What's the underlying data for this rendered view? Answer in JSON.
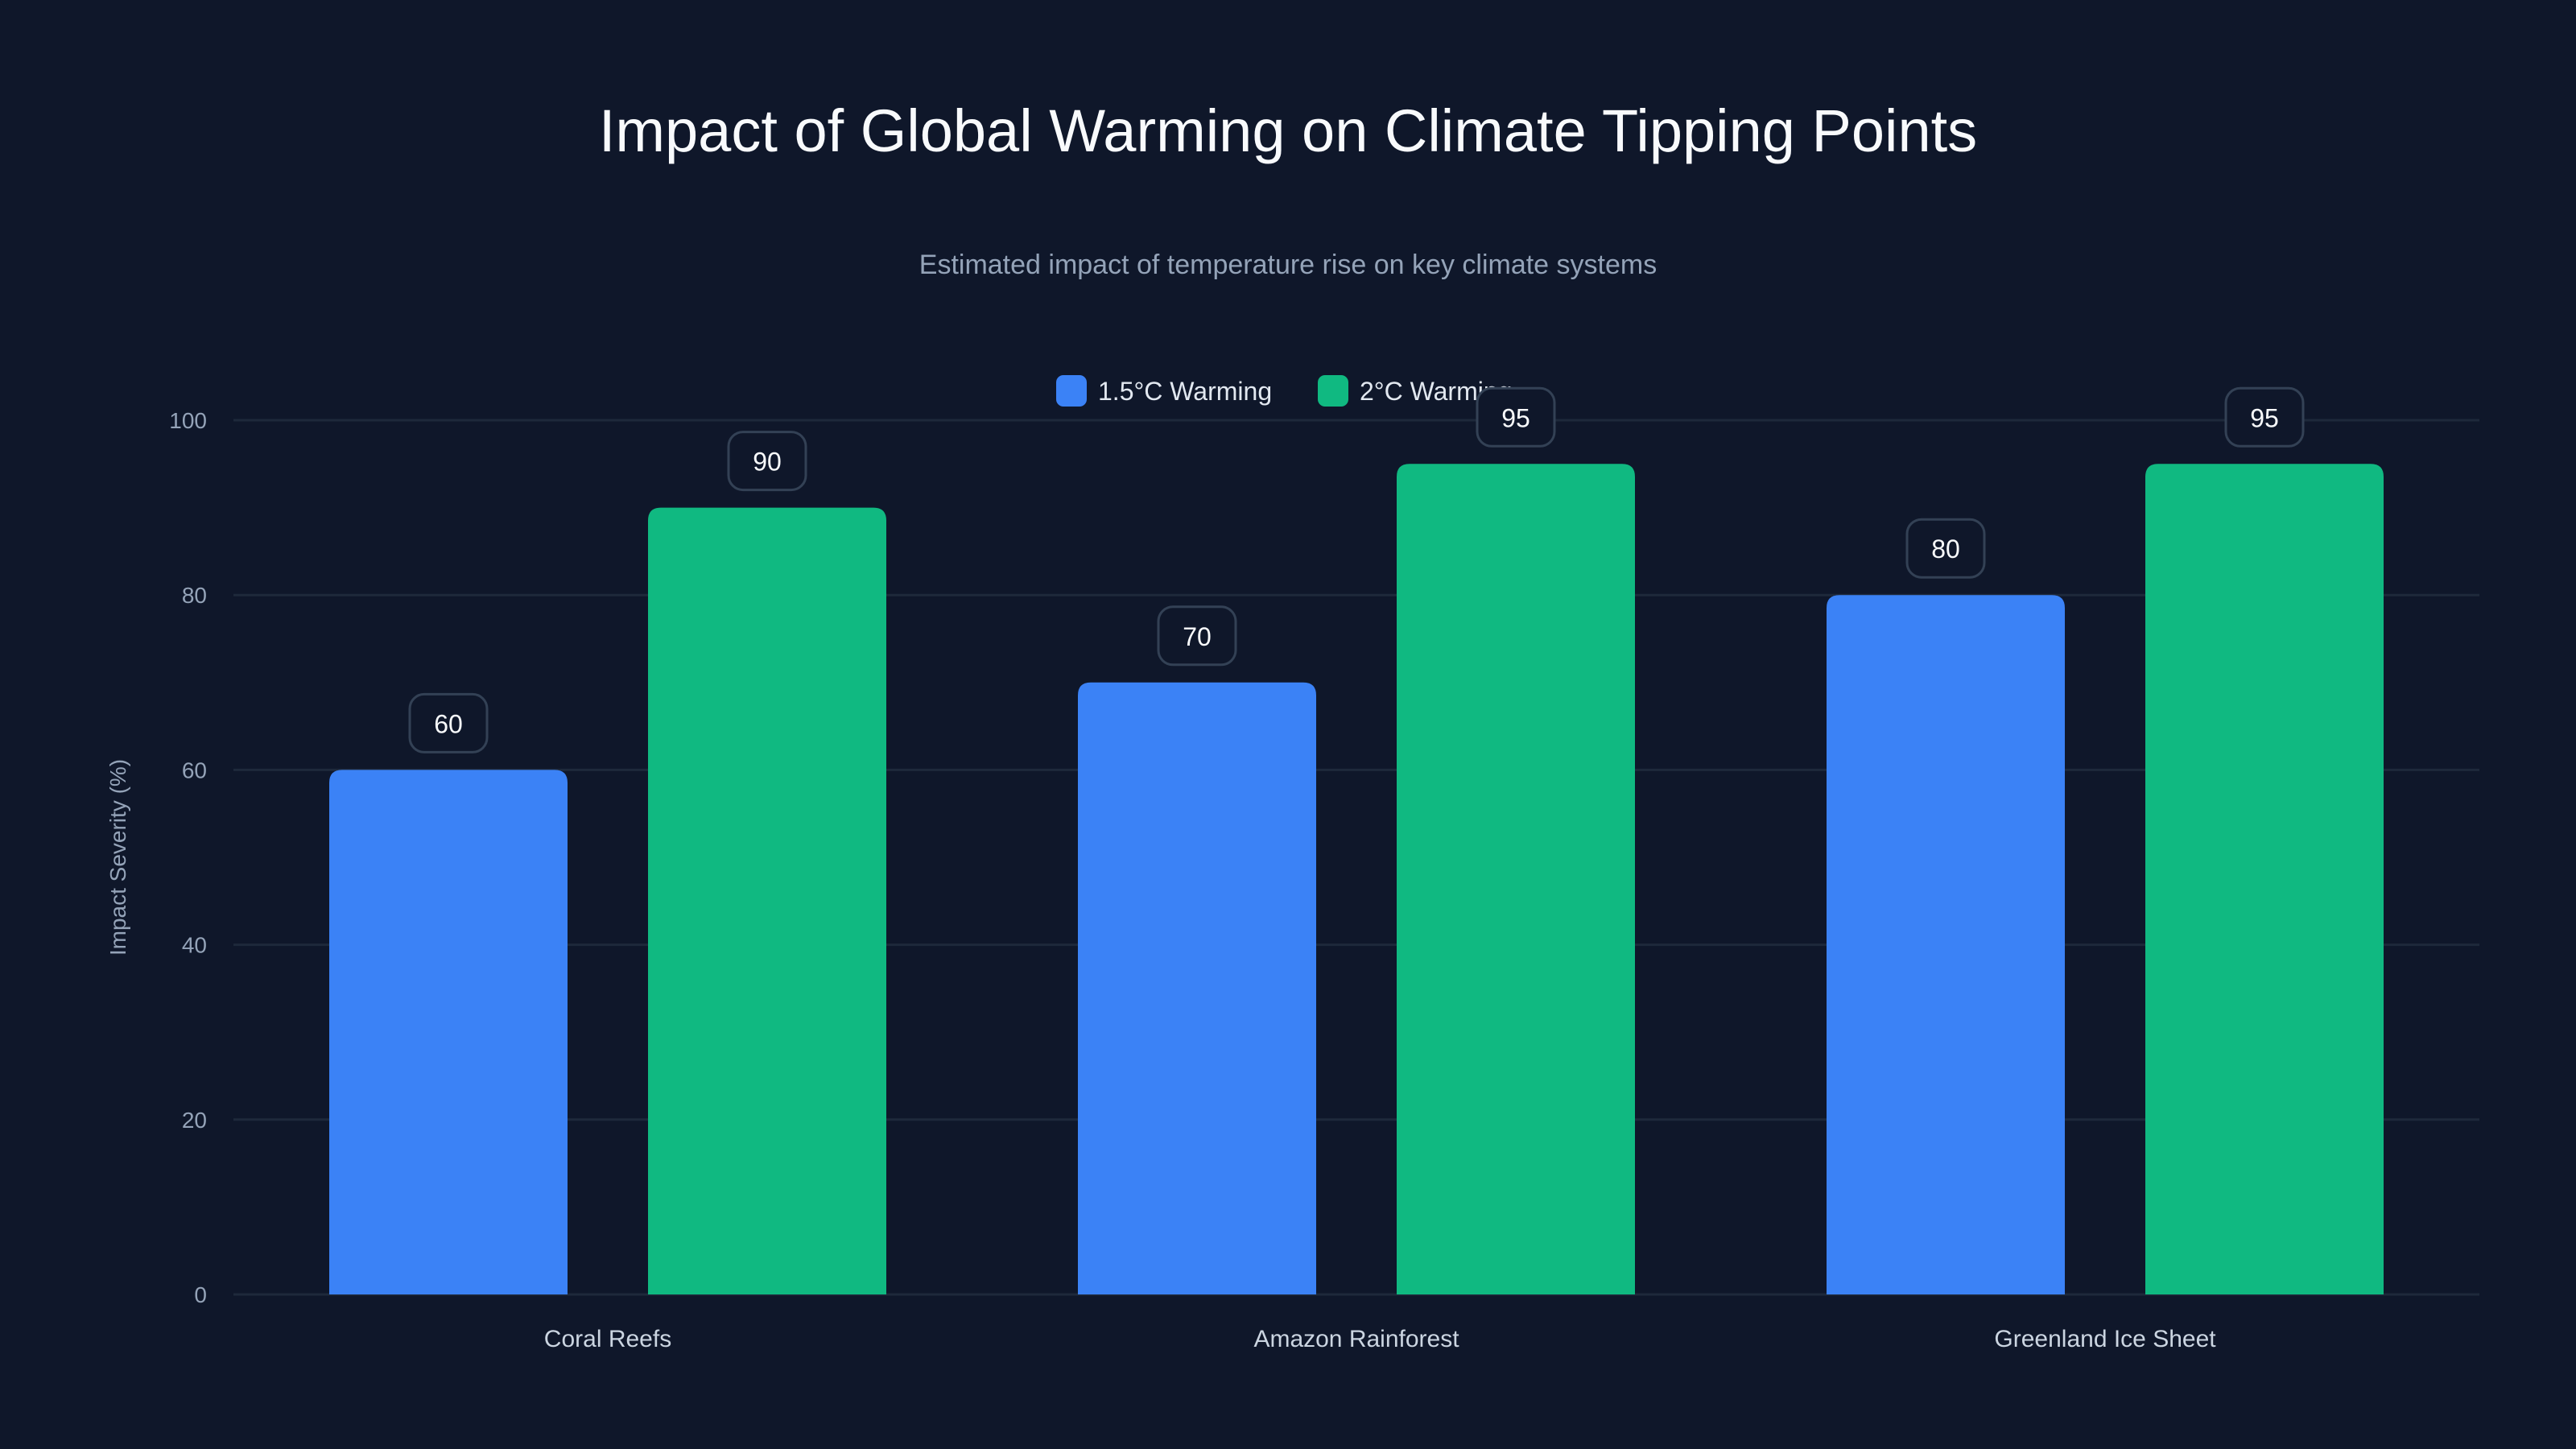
{
  "chart_data": {
    "type": "bar",
    "title": "Impact of Global Warming on Climate Tipping Points",
    "subtitle": "Estimated impact of temperature rise on key climate systems",
    "xlabel": "",
    "ylabel": "Impact Severity (%)",
    "ylim": [
      0,
      100
    ],
    "yticks": [
      0,
      20,
      40,
      60,
      80,
      100
    ],
    "grid": true,
    "legend_position": "top-center",
    "categories": [
      "Coral Reefs",
      "Amazon Rainforest",
      "Greenland Ice Sheet"
    ],
    "series": [
      {
        "name": "1.5°C Warming",
        "color": "#3b82f6",
        "values": [
          60,
          70,
          80
        ]
      },
      {
        "name": "2°C Warming",
        "color": "#10b981",
        "values": [
          90,
          95,
          95
        ]
      }
    ]
  }
}
